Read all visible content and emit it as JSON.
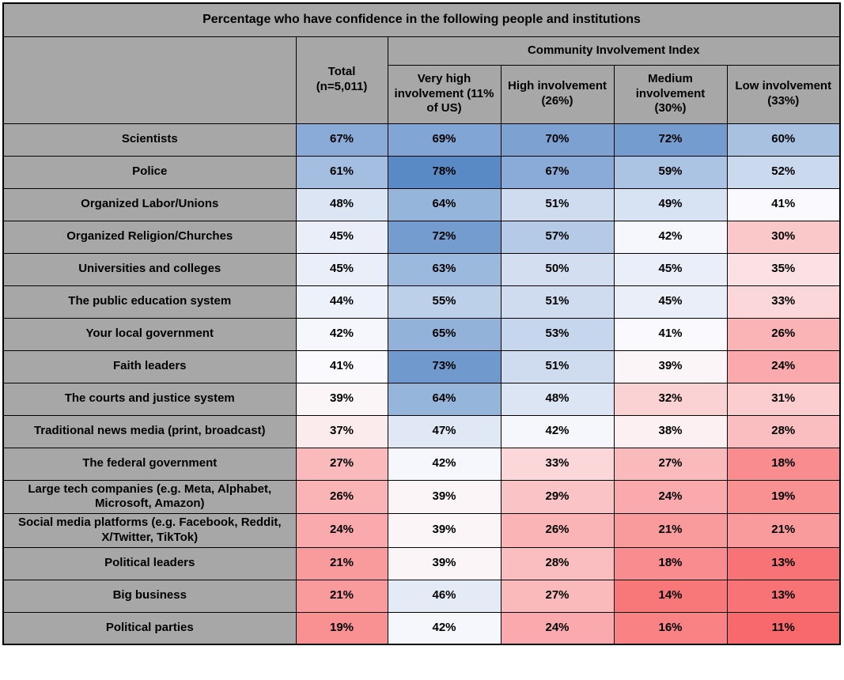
{
  "title": "Percentage who have confidence in the following people and institutions",
  "header": {
    "corner": "",
    "total": "Total\n(n=5,011)",
    "group": "Community Involvement Index",
    "subcolumns": [
      "Very high involvement (11% of US)",
      "High involvement (26%)",
      "Medium involvement (30%)",
      "Low involvement (33%)"
    ]
  },
  "unit": "%",
  "colors": {
    "header_bg": "#a7a7a7",
    "border": "#000000",
    "text": "#000000",
    "scale_low": "#F8696B",
    "scale_mid": "#FCFCFF",
    "scale_high": "#5A8AC6"
  },
  "heatmap_scale": {
    "min_value": 11,
    "mid_value": 40.5,
    "max_value": 78,
    "min_color": "#F8696B",
    "mid_color": "#FCFCFF",
    "max_color": "#5A8AC6"
  },
  "chart_data": {
    "type": "heatmap",
    "title": "Percentage who have confidence in the following people and institutions",
    "column_group": "Community Involvement Index",
    "columns": [
      "Total (n=5,011)",
      "Very high involvement (11% of US)",
      "High involvement (26%)",
      "Medium involvement (30%)",
      "Low involvement (33%)"
    ],
    "rows": [
      "Scientists",
      "Police",
      "Organized Labor/Unions",
      "Organized Religion/Churches",
      "Universities and colleges",
      "The public education system",
      "Your local government",
      "Faith leaders",
      "The courts and justice system",
      "Traditional news media (print, broadcast)",
      "The federal government",
      "Large tech companies (e.g. Meta, Alphabet, Microsoft, Amazon)",
      "Social media platforms (e.g. Facebook, Reddit, X/Twitter, TikTok)",
      "Political leaders",
      "Big business",
      "Political parties"
    ],
    "values_percent": [
      [
        67,
        69,
        70,
        72,
        60
      ],
      [
        61,
        78,
        67,
        59,
        52
      ],
      [
        48,
        64,
        51,
        49,
        41
      ],
      [
        45,
        72,
        57,
        42,
        30
      ],
      [
        45,
        63,
        50,
        45,
        35
      ],
      [
        44,
        55,
        51,
        45,
        33
      ],
      [
        42,
        65,
        53,
        41,
        26
      ],
      [
        41,
        73,
        51,
        39,
        24
      ],
      [
        39,
        64,
        48,
        32,
        31
      ],
      [
        37,
        47,
        42,
        38,
        28
      ],
      [
        27,
        42,
        33,
        27,
        18
      ],
      [
        26,
        39,
        29,
        24,
        19
      ],
      [
        24,
        39,
        26,
        21,
        21
      ],
      [
        21,
        39,
        28,
        18,
        13
      ],
      [
        21,
        46,
        27,
        14,
        13
      ],
      [
        19,
        42,
        24,
        16,
        11
      ]
    ],
    "color_scale": {
      "type": "diverging",
      "low_color": "#F8696B",
      "mid_color": "#FCFCFF",
      "high_color": "#5A8AC6",
      "domain": [
        11,
        40.5,
        78
      ]
    },
    "legend_position": "none",
    "grid": true
  }
}
